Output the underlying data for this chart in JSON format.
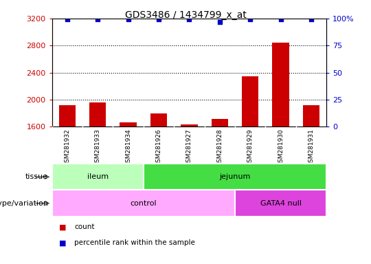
{
  "title": "GDS3486 / 1434799_x_at",
  "samples": [
    "GSM281932",
    "GSM281933",
    "GSM281934",
    "GSM281926",
    "GSM281927",
    "GSM281928",
    "GSM281929",
    "GSM281930",
    "GSM281931"
  ],
  "counts": [
    1920,
    1960,
    1660,
    1800,
    1635,
    1710,
    2350,
    2840,
    1920
  ],
  "percentile_ranks": [
    99,
    99,
    99,
    99,
    99,
    97,
    99,
    99,
    99
  ],
  "ylim_left": [
    1600,
    3200
  ],
  "ylim_right": [
    0,
    100
  ],
  "yticks_left": [
    1600,
    2000,
    2400,
    2800,
    3200
  ],
  "yticks_right": [
    0,
    25,
    50,
    75,
    100
  ],
  "bar_color": "#cc0000",
  "dot_color": "#0000cc",
  "tissue_labels": [
    {
      "label": "ileum",
      "start": 0,
      "end": 3,
      "color": "#bbffbb"
    },
    {
      "label": "jejunum",
      "start": 3,
      "end": 9,
      "color": "#44dd44"
    }
  ],
  "genotype_labels": [
    {
      "label": "control",
      "start": 0,
      "end": 6,
      "color": "#ffaaff"
    },
    {
      "label": "GATA4 null",
      "start": 6,
      "end": 9,
      "color": "#dd44dd"
    }
  ],
  "legend_items": [
    {
      "label": "count",
      "color": "#cc0000"
    },
    {
      "label": "percentile rank within the sample",
      "color": "#0000cc"
    }
  ],
  "grid_color": "black",
  "sample_bg_color": "#d0d0d0",
  "axis_color_left": "#cc0000",
  "axis_color_right": "#0000cc",
  "chart_bg": "#ffffff"
}
